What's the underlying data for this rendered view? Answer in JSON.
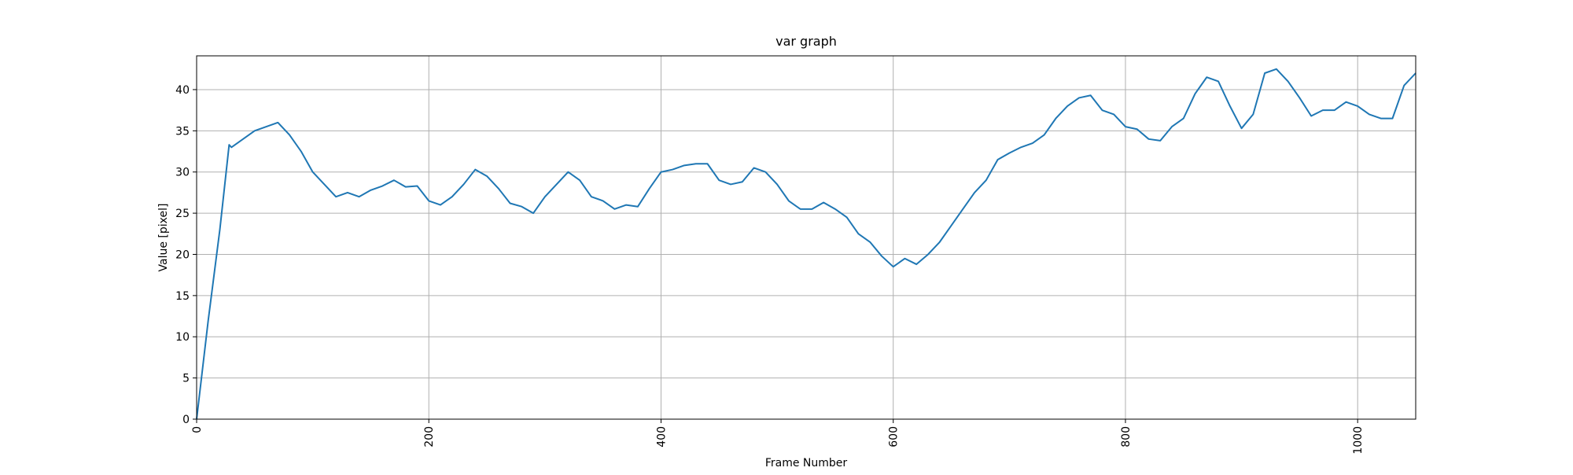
{
  "chart_data": {
    "type": "line",
    "title": "var graph",
    "xlabel": "Frame Number",
    "ylabel": "Value [pixel]",
    "x": [
      0,
      10,
      20,
      28,
      30,
      40,
      50,
      60,
      70,
      80,
      90,
      100,
      110,
      120,
      130,
      140,
      150,
      160,
      170,
      180,
      190,
      200,
      210,
      220,
      230,
      240,
      250,
      260,
      270,
      280,
      290,
      300,
      310,
      320,
      330,
      340,
      350,
      360,
      370,
      380,
      390,
      400,
      410,
      420,
      430,
      440,
      450,
      460,
      470,
      480,
      490,
      500,
      510,
      520,
      530,
      540,
      550,
      560,
      570,
      580,
      590,
      600,
      610,
      620,
      630,
      640,
      650,
      660,
      670,
      680,
      690,
      700,
      710,
      720,
      730,
      740,
      750,
      760,
      770,
      780,
      790,
      800,
      810,
      820,
      830,
      840,
      850,
      860,
      870,
      880,
      890,
      900,
      910,
      920,
      930,
      940,
      950,
      960,
      970,
      980,
      990,
      1000,
      1010,
      1020,
      1030,
      1040,
      1050
    ],
    "series": [
      {
        "name": "var",
        "color": "#1f77b4",
        "values": [
          0,
          12,
          23,
          33.3,
          33,
          34,
          35,
          35.5,
          36,
          34.5,
          32.5,
          30,
          28.5,
          27,
          27.5,
          27,
          27.8,
          28.3,
          29,
          28.2,
          28.3,
          26.5,
          26,
          27,
          28.5,
          30.3,
          29.5,
          28,
          26.2,
          25.8,
          25,
          27,
          28.5,
          30,
          29,
          27,
          26.5,
          25.5,
          26,
          25.8,
          28,
          30,
          30.3,
          30.8,
          31,
          31,
          29,
          28.5,
          28.8,
          30.5,
          30,
          28.5,
          26.5,
          25.5,
          25.5,
          26.3,
          25.5,
          24.5,
          22.5,
          21.5,
          19.8,
          18.5,
          19.5,
          18.8,
          20,
          21.5,
          23.5,
          25.5,
          27.5,
          29,
          31.5,
          32.3,
          33,
          33.5,
          34.5,
          36.5,
          38,
          39,
          39.3,
          37.5,
          37,
          35.5,
          35.2,
          34,
          33.8,
          35.5,
          36.5,
          39.5,
          41.5,
          41,
          38,
          35.3,
          37,
          42,
          42.5,
          41,
          39,
          36.8,
          37.5,
          37.5,
          38.5,
          38,
          37,
          36.5,
          36.5,
          40.5,
          42
        ]
      }
    ],
    "xlim": [
      0,
      1050
    ],
    "xticks": [
      0,
      200,
      400,
      600,
      800,
      1000
    ],
    "ylim": [
      0,
      44.1
    ],
    "yticks": [
      0,
      5,
      10,
      15,
      20,
      25,
      30,
      35,
      40
    ],
    "grid": true
  }
}
